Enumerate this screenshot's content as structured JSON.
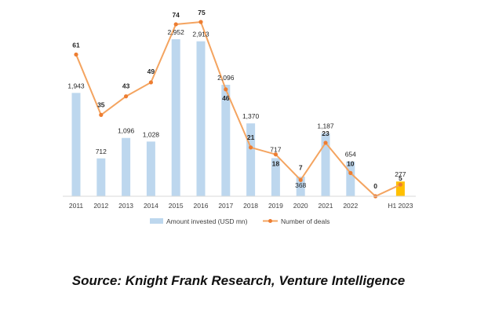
{
  "chart_data": {
    "type": "bar",
    "categories": [
      "2011",
      "2012",
      "2013",
      "2014",
      "2015",
      "2016",
      "2017",
      "2018",
      "2019",
      "2020",
      "2021",
      "2022",
      "",
      "H1 2023"
    ],
    "series": [
      {
        "name": "Amount invested (USD mn)",
        "type": "bar",
        "color": "#bdd7ee",
        "highlight_color": "#ffc000",
        "highlight_index": 13,
        "values": [
          1943,
          712,
          1096,
          1028,
          2952,
          2913,
          2096,
          1370,
          717,
          368,
          1187,
          654,
          null,
          277
        ],
        "labels": [
          "1,943",
          "712",
          "1,096",
          "1,028",
          "2,952",
          "2,913",
          "2,096",
          "1,370",
          "717",
          "368",
          "1,187",
          "654",
          "",
          "277"
        ]
      },
      {
        "name": "Number of deals",
        "type": "line",
        "color": "#f4a460",
        "marker_color": "#ed7d31",
        "values": [
          61,
          35,
          43,
          49,
          74,
          75,
          46,
          21,
          18,
          7,
          23,
          10,
          0,
          5
        ],
        "labels": [
          "61",
          "35",
          "43",
          "49",
          "74",
          "75",
          "46",
          "21",
          "18",
          "7",
          "23",
          "10",
          "0",
          "5"
        ]
      }
    ],
    "legend_position": "bottom",
    "grid": false
  },
  "source_text": "Source: Knight Frank Research, Venture Intelligence"
}
